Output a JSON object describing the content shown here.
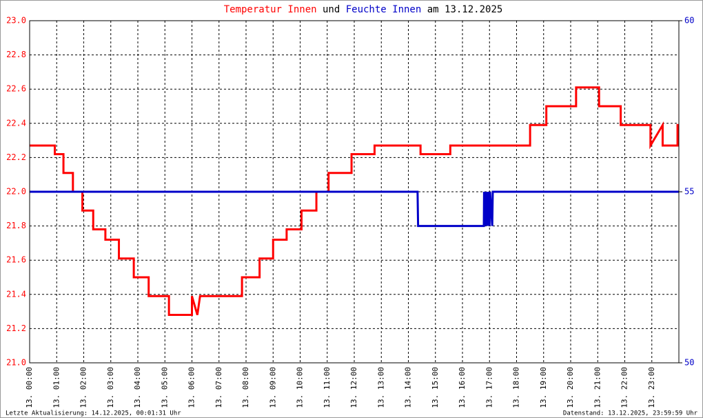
{
  "chart_data": {
    "type": "line",
    "title_connector": "und",
    "title_suffix": "am 13.12.2025",
    "footer_left": "Letzte Aktualisierung: 14.12.2025, 00:01:31 Uhr",
    "footer_right": "Datenstand: 13.12.2025, 23:59:59 Uhr",
    "xlim": [
      0,
      24
    ],
    "xticks": [
      {
        "value": 0,
        "label": "13. 00:00"
      },
      {
        "value": 1,
        "label": "13. 01:00"
      },
      {
        "value": 2,
        "label": "13. 02:00"
      },
      {
        "value": 3,
        "label": "13. 03:00"
      },
      {
        "value": 4,
        "label": "13. 04:00"
      },
      {
        "value": 5,
        "label": "13. 05:00"
      },
      {
        "value": 6,
        "label": "13. 06:00"
      },
      {
        "value": 7,
        "label": "13. 07:00"
      },
      {
        "value": 8,
        "label": "13. 08:00"
      },
      {
        "value": 9,
        "label": "13. 09:00"
      },
      {
        "value": 10,
        "label": "13. 10:00"
      },
      {
        "value": 11,
        "label": "13. 11:00"
      },
      {
        "value": 12,
        "label": "13. 12:00"
      },
      {
        "value": 13,
        "label": "13. 13:00"
      },
      {
        "value": 14,
        "label": "13. 14:00"
      },
      {
        "value": 15,
        "label": "13. 15:00"
      },
      {
        "value": 16,
        "label": "13. 16:00"
      },
      {
        "value": 17,
        "label": "13. 17:00"
      },
      {
        "value": 18,
        "label": "13. 18:00"
      },
      {
        "value": 19,
        "label": "13. 19:00"
      },
      {
        "value": 20,
        "label": "13. 20:00"
      },
      {
        "value": 21,
        "label": "13. 21:00"
      },
      {
        "value": 22,
        "label": "13. 22:00"
      },
      {
        "value": 23,
        "label": "13. 23:00"
      }
    ],
    "ylim": [
      21,
      23
    ],
    "yticks": [
      {
        "value": 21,
        "label": "21.0"
      },
      21.2,
      21.4,
      21.6,
      21.8,
      {
        "value": 22,
        "label": "22.0"
      },
      22.2,
      22.4,
      22.6,
      22.8,
      {
        "value": 23,
        "label": "23.0"
      }
    ],
    "y2lim": [
      50,
      60
    ],
    "y2ticks": [
      50,
      55,
      60
    ],
    "grid": true,
    "series": [
      {
        "name": "Temperatur Innen",
        "color": "#ff0000",
        "x": [
          0,
          0.93,
          0.93,
          1.25,
          1.25,
          1.6,
          1.6,
          1.95,
          1.95,
          2.35,
          2.35,
          2.8,
          2.8,
          3.3,
          3.3,
          3.85,
          3.85,
          4.4,
          4.4,
          5.15,
          5.15,
          6.0,
          6.0,
          6.2,
          6.3,
          7.85,
          7.85,
          8.5,
          8.5,
          9.0,
          9.0,
          9.5,
          9.5,
          10.05,
          10.05,
          10.6,
          10.6,
          11.05,
          11.05,
          11.9,
          11.9,
          12.75,
          12.75,
          14.45,
          14.45,
          15.55,
          15.55,
          18.5,
          18.5,
          19.1,
          19.1,
          20.2,
          20.2,
          21.05,
          21.05,
          21.85,
          21.85,
          22.95,
          22.95,
          23.4,
          23.4,
          23.95,
          23.95,
          24
        ],
        "values": [
          22.27,
          22.27,
          22.22,
          22.22,
          22.11,
          22.11,
          22.0,
          22.0,
          21.89,
          21.89,
          21.78,
          21.78,
          21.72,
          21.72,
          21.61,
          21.61,
          21.5,
          21.5,
          21.39,
          21.39,
          21.28,
          21.28,
          21.39,
          21.28,
          21.39,
          21.39,
          21.5,
          21.5,
          21.61,
          21.61,
          21.72,
          21.72,
          21.78,
          21.78,
          21.89,
          21.89,
          22.0,
          22.0,
          22.11,
          22.11,
          22.22,
          22.22,
          22.27,
          22.27,
          22.22,
          22.22,
          22.27,
          22.27,
          22.39,
          22.39,
          22.5,
          22.5,
          22.61,
          22.61,
          22.5,
          22.5,
          22.39,
          22.39,
          22.27,
          22.39,
          22.27,
          22.27,
          22.39,
          22.39
        ]
      },
      {
        "name": "Feuchte Innen",
        "color": "#0000c8",
        "axis": "y2",
        "x": [
          0,
          14.34,
          14.36,
          16.79,
          16.8,
          16.85,
          16.87,
          16.92,
          16.95,
          17.0,
          17.02,
          17.1,
          17.12,
          24
        ],
        "values": [
          55,
          55,
          54,
          54,
          55,
          54,
          55,
          54,
          55,
          54,
          55,
          54,
          55,
          55
        ]
      }
    ]
  }
}
